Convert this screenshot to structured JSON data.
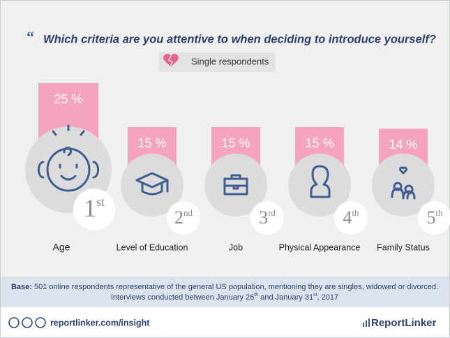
{
  "chart_data": {
    "type": "bar",
    "title": "Which criteria are you attentive to when deciding to introduce yourself?",
    "subtitle": "Single respondents",
    "categories": [
      "Age",
      "Level of Education",
      "Job",
      "Physical Appearance",
      "Family Status"
    ],
    "values": [
      25,
      15,
      15,
      15,
      14
    ],
    "value_labels": [
      "25 %",
      "15 %",
      "15 %",
      "15 %",
      "14 %"
    ],
    "ranks": [
      {
        "num": "1",
        "suffix": "st"
      },
      {
        "num": "2",
        "suffix": "nd"
      },
      {
        "num": "3",
        "suffix": "rd"
      },
      {
        "num": "4",
        "suffix": "th"
      },
      {
        "num": "5",
        "suffix": "th"
      }
    ],
    "color": "#f6a3bf"
  },
  "footer": {
    "base_label": "Base:",
    "line1": " 501 online respondents representative of the general US population, mentioning they are singles, widowed or divorced.",
    "line2": [
      "Interviews conducted between January 26",
      "th",
      " and January 31",
      "st",
      ", 2017"
    ]
  },
  "brand": {
    "url": "reportlinker.com/insight",
    "logo": "ReportLinker"
  }
}
